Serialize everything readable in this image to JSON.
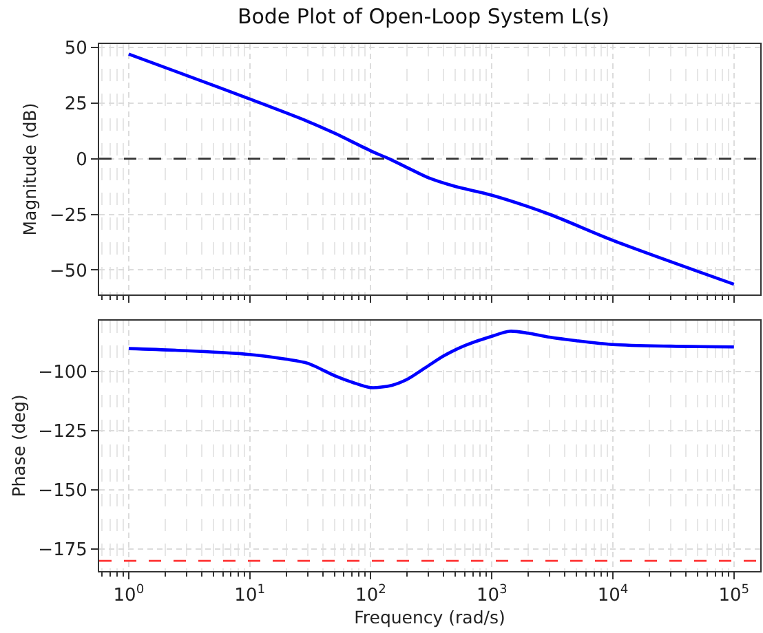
{
  "chart_data": [
    {
      "type": "line",
      "title": "Bode Plot of Open-Loop System L(s)",
      "ylabel": "Magnitude (dB)",
      "log": "x",
      "grid": true,
      "tick_labels": "y",
      "x": [
        1,
        3,
        10,
        30,
        50,
        100,
        141,
        200,
        300,
        500,
        1000,
        3000,
        10000,
        100000
      ],
      "series": [
        {
          "color": "#0000ff",
          "values": [
            47,
            37.4,
            26.8,
            16.8,
            11.5,
            3.5,
            0,
            -4,
            -8.6,
            -12.5,
            -16.4,
            -25,
            -36.7,
            -56.4
          ]
        }
      ],
      "xlim": [
        0.57,
        165000
      ],
      "ylim": [
        -61,
        51.5
      ],
      "yticks": [
        -50,
        -25,
        0,
        25,
        50
      ],
      "xticks": [
        {
          "value": 1,
          "label": null
        },
        {
          "value": 10,
          "label": null
        },
        {
          "value": 100,
          "label": null
        },
        {
          "value": 1000,
          "label": null
        },
        {
          "value": 10000,
          "label": null
        },
        {
          "value": 100000,
          "label": null
        }
      ],
      "ref_lines": [
        {
          "axis": "y",
          "value": 0,
          "color": "#333333",
          "line_style": "dashed"
        }
      ]
    },
    {
      "type": "line",
      "xlabel": "Frequency (rad/s)",
      "ylabel": "Phase (deg)",
      "log": "x",
      "grid": true,
      "x": [
        1,
        3,
        10,
        20,
        30,
        50,
        70,
        100,
        150,
        200,
        300,
        400,
        600,
        1000,
        1400,
        2000,
        3000,
        5000,
        10000,
        30000,
        100000
      ],
      "series": [
        {
          "color": "#0000ff",
          "values": [
            -90.3,
            -91.2,
            -92.8,
            -94.8,
            -96.5,
            -101.7,
            -104.5,
            -106.8,
            -105.8,
            -103.3,
            -97.5,
            -93.4,
            -89,
            -85.1,
            -83,
            -83.8,
            -85.5,
            -87,
            -88.6,
            -89.3,
            -89.6
          ]
        }
      ],
      "xlim": [
        0.57,
        165000
      ],
      "ylim": [
        -184.3,
        -78.5
      ],
      "yticks": [
        -175,
        -150,
        -125,
        -100
      ],
      "xticks": [
        {
          "value": 1,
          "label": "10$^{0}$"
        },
        {
          "value": 10,
          "label": "10$^{1}$"
        },
        {
          "value": 100,
          "label": "10$^{2}$"
        },
        {
          "value": 1000,
          "label": "10$^{3}$"
        },
        {
          "value": 10000,
          "label": "10$^{4}$"
        },
        {
          "value": 100000,
          "label": "10$^{5}$"
        }
      ],
      "ref_lines": [
        {
          "axis": "y",
          "value": -180,
          "color": "#ff3333",
          "line_style": "dashed"
        }
      ]
    }
  ]
}
